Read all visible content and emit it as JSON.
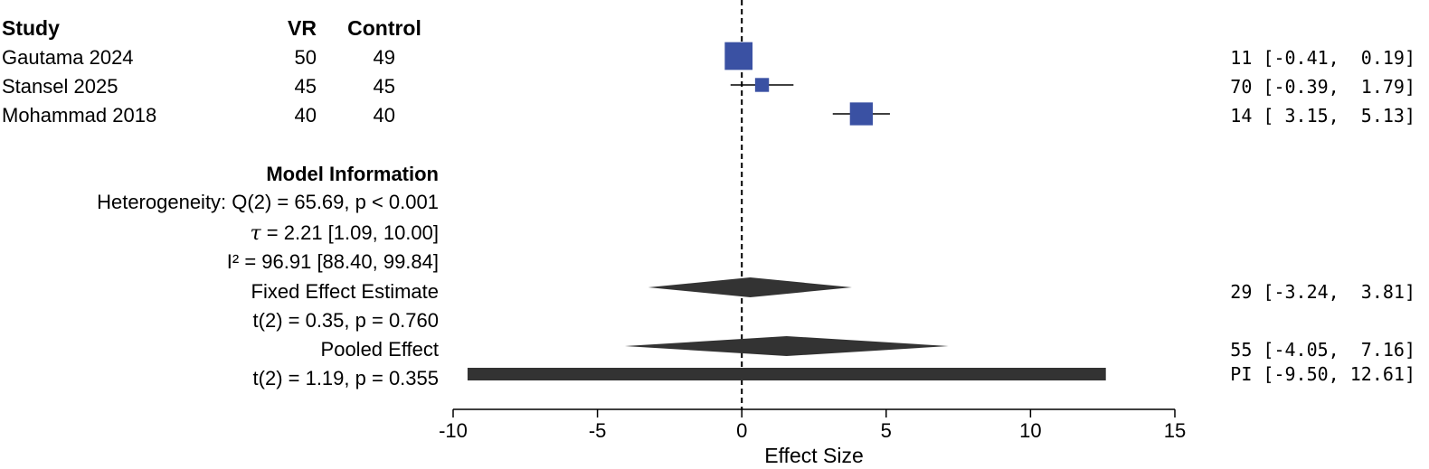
{
  "chart_data": {
    "type": "forest",
    "xlabel": "Effect Size",
    "xlim": [
      -10,
      15
    ],
    "xticks": [
      -10,
      -5,
      0,
      5,
      10,
      15
    ],
    "reference_line": 0,
    "columns": {
      "study": "Study",
      "vr": "VR",
      "control": "Control"
    },
    "colors": {
      "study_marker": "#3a51a3",
      "summary": "#333333",
      "line": "#000000"
    },
    "studies": [
      {
        "name": "Gautama 2024",
        "vr": "50",
        "control": "49",
        "estimate": -0.11,
        "lower": -0.41,
        "upper": 0.19,
        "ci_text": "11 [-0.41,  0.19]",
        "weight": 0.55
      },
      {
        "name": "Stansel 2025",
        "vr": "45",
        "control": "45",
        "estimate": 0.7,
        "lower": -0.39,
        "upper": 1.79,
        "ci_text": "70 [-0.39,  1.79]",
        "weight": 0.1
      },
      {
        "name": "Mohammad 2018",
        "vr": "40",
        "control": "40",
        "estimate": 4.14,
        "lower": 3.15,
        "upper": 5.13,
        "ci_text": "14 [ 3.15,  5.13]",
        "weight": 0.35
      }
    ],
    "model_info": {
      "title": "Model Information",
      "heterogeneity": "Heterogeneity: Q(2) = 65.69, p < 0.001",
      "tau_symbol": "τ",
      "tau": " = 2.21 [1.09, 10.00]",
      "i2": "I² = 96.91 [88.40, 99.84]"
    },
    "fixed": {
      "label": "Fixed Effect Estimate",
      "test": "t(2) = 0.35, p = 0.760",
      "estimate": 0.29,
      "lower": -3.24,
      "upper": 3.81,
      "ci_text": "29 [-3.24,  3.81]"
    },
    "pooled": {
      "label": "Pooled Effect",
      "test": "t(2) = 1.19, p = 0.355",
      "estimate": 1.55,
      "lower": -4.05,
      "upper": 7.16,
      "ci_text": "55 [-4.05,  7.16]"
    },
    "prediction_interval": {
      "lower": -9.5,
      "upper": 12.61,
      "ci_text": "PI [-9.50, 12.61]"
    }
  }
}
